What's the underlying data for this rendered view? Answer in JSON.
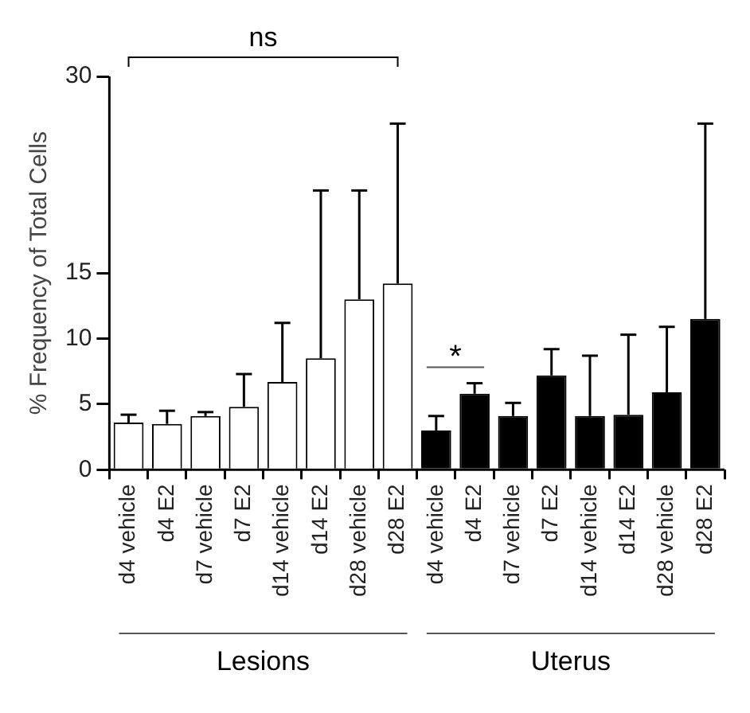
{
  "chart_data": {
    "type": "bar",
    "ylabel": "% Frequency of Total Cells",
    "categories": [
      "d4 vehicle",
      "d4 E2",
      "d7 vehicle",
      "d7 E2",
      "d14 vehicle",
      "d14 E2",
      "d28 vehicle",
      "d28 E2",
      "d4 vehicle",
      "d4 E2",
      "d7 vehicle",
      "d7 E2",
      "d14 vehicle",
      "d14 E2",
      "d28 vehicle",
      "d28 E2"
    ],
    "values": [
      3.6,
      3.5,
      4.1,
      4.8,
      6.7,
      8.5,
      13.0,
      14.2,
      3.0,
      5.8,
      4.1,
      7.2,
      4.1,
      4.2,
      5.9,
      11.5
    ],
    "errors": [
      [
        3.6,
        4.2
      ],
      [
        3.5,
        4.5
      ],
      [
        4.1,
        4.4
      ],
      [
        4.8,
        7.3
      ],
      [
        6.7,
        11.2
      ],
      [
        8.5,
        21.3
      ],
      [
        13.0,
        21.3
      ],
      [
        14.2,
        26.4
      ],
      [
        3.0,
        4.1
      ],
      [
        5.8,
        6.6
      ],
      [
        4.1,
        5.1
      ],
      [
        7.2,
        9.2
      ],
      [
        4.1,
        8.7
      ],
      [
        4.2,
        10.3
      ],
      [
        5.9,
        10.9
      ],
      [
        11.5,
        26.4
      ]
    ],
    "colors": [
      "#ffffff",
      "#ffffff",
      "#ffffff",
      "#ffffff",
      "#ffffff",
      "#ffffff",
      "#ffffff",
      "#ffffff",
      "#000000",
      "#000000",
      "#000000",
      "#000000",
      "#000000",
      "#000000",
      "#000000",
      "#000000"
    ],
    "ylim": [
      0,
      30
    ],
    "yticks": [
      0,
      5,
      10,
      15,
      30
    ],
    "grid": false,
    "legend": false,
    "annotations": [
      "ns",
      "*",
      "Lesions",
      "Uterus"
    ]
  }
}
